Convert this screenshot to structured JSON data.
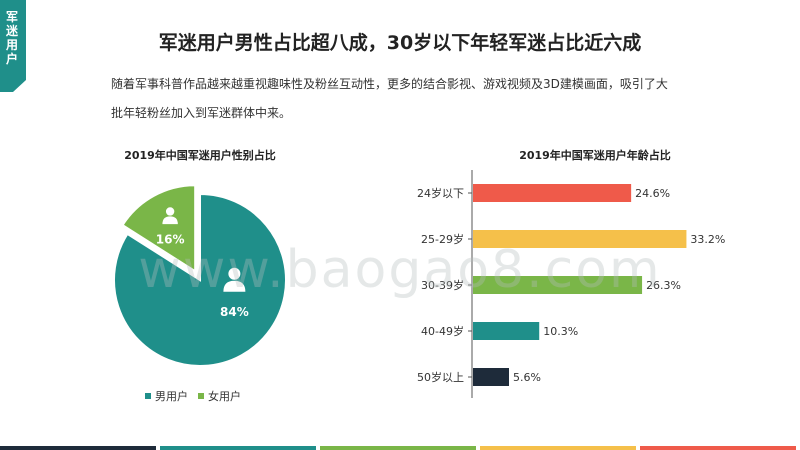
{
  "side_tab": {
    "label": "军迷用户",
    "color": "#1f8f8a"
  },
  "title": "军迷用户男性占比超八成，30岁以下年轻军迷占比近六成",
  "description": "随着军事科普作品越来越重视趣味性及粉丝互动性，更多的结合影视、游戏视频及3D建模画面，吸引了大批年轻粉丝加入到军迷群体中来。",
  "watermark": "www.baogao8.com",
  "footer_colors": [
    "#1e2b3a",
    "#1f8f8a",
    "#7ab648",
    "#f5c04a",
    "#ef5a4a"
  ],
  "chart_data": [
    {
      "type": "pie",
      "title": "2019年中国军迷用户性别占比",
      "slices": [
        {
          "name": "男用户",
          "value": 84,
          "label": "84%",
          "color": "#1f8f8a",
          "icon": "male-user-icon"
        },
        {
          "name": "女用户",
          "value": 16,
          "label": "16%",
          "color": "#7ab648",
          "icon": "female-user-icon"
        }
      ],
      "legend": "bottom"
    },
    {
      "type": "bar",
      "orientation": "horizontal",
      "title": "2019年中国军迷用户年龄占比",
      "categories": [
        "24岁以下",
        "25-29岁",
        "30-39岁",
        "40-49岁",
        "50岁以上"
      ],
      "values": [
        24.6,
        33.2,
        26.3,
        10.3,
        5.6
      ],
      "labels": [
        "24.6%",
        "33.2%",
        "26.3%",
        "10.3%",
        "5.6%"
      ],
      "colors": [
        "#ef5a4a",
        "#f5c04a",
        "#7ab648",
        "#1f8f8a",
        "#1e2b3a"
      ],
      "xlim": [
        0,
        35
      ]
    }
  ]
}
